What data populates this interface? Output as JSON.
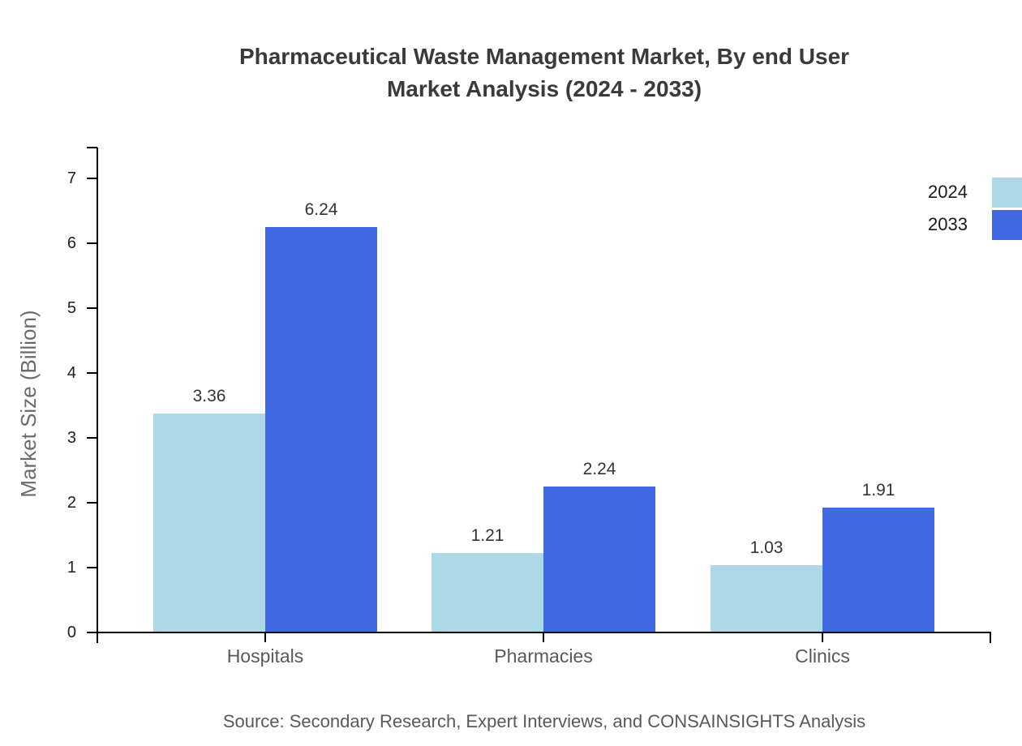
{
  "title": {
    "line1": "Pharmaceutical Waste Management Market, By end User",
    "line2": "Market Analysis (2024 - 2033)"
  },
  "source_note": "Source: Secondary Research, Expert Interviews, and CONSAINSIGHTS Analysis",
  "chart_data": {
    "type": "bar",
    "categories": [
      "Hospitals",
      "Pharmacies",
      "Clinics"
    ],
    "series": [
      {
        "name": "2024",
        "color": "#ADD8E6",
        "values": [
          3.36,
          1.21,
          1.03
        ]
      },
      {
        "name": "2033",
        "color": "#4169E1",
        "values": [
          6.24,
          2.24,
          1.91
        ]
      }
    ],
    "title": "Pharmaceutical Waste Management Market, By end User Market Analysis (2024 - 2033)",
    "xlabel": "",
    "ylabel": "Market Size (Billion)",
    "ylim": [
      0,
      7.5
    ],
    "yticks": [
      0,
      1,
      2,
      3,
      4,
      5,
      6,
      7
    ],
    "grid": false,
    "legend_position": "top-right",
    "value_labels": true,
    "value_label_format": "0.00"
  },
  "colors": {
    "series_2024": "#ADD8E6",
    "series_2033": "#4169E1",
    "axis": "#000000",
    "title_text": "#3a3a3a",
    "tick_text": "#1f1f1f",
    "category_text": "#595959",
    "muted_text": "#6b6b6b"
  }
}
